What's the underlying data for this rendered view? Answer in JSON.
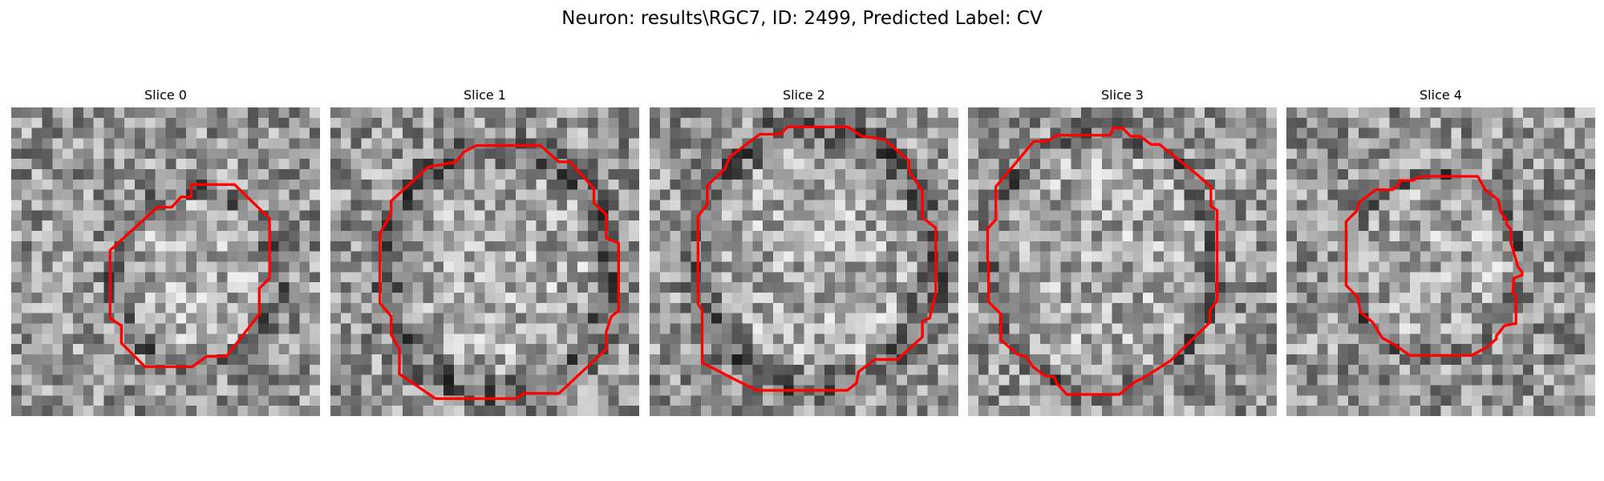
{
  "figure": {
    "title": "Neuron: results\\RGC7, ID: 2499, Predicted Label: CV"
  },
  "panels": [
    {
      "title": "Slice 0"
    },
    {
      "title": "Slice 1"
    },
    {
      "title": "Slice 2"
    },
    {
      "title": "Slice 3"
    },
    {
      "title": "Slice 4"
    }
  ],
  "colors": {
    "contour": "#ff0000",
    "colormap": "gray"
  }
}
